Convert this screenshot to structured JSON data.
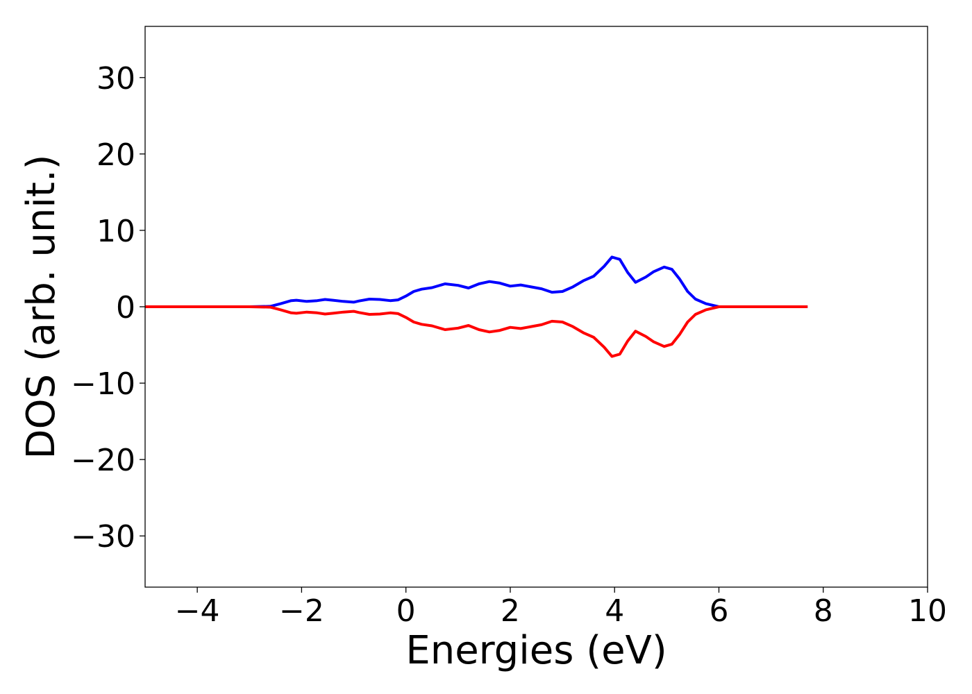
{
  "chart_data": {
    "type": "line",
    "title": "",
    "xlabel": "Energies (eV)",
    "ylabel": "DOS (arb. unit.)",
    "xlim": [
      -5,
      10
    ],
    "ylim": [
      -36.7,
      36.7
    ],
    "xticks": [
      -4,
      -2,
      0,
      2,
      4,
      6,
      8,
      10
    ],
    "xtick_labels": [
      "−4",
      "−2",
      "0",
      "2",
      "4",
      "6",
      "8",
      "10"
    ],
    "yticks": [
      30,
      20,
      10,
      0,
      -10,
      -20,
      -30
    ],
    "ytick_labels": [
      "30",
      "20",
      "10",
      "0",
      "−10",
      "−20",
      "−30"
    ],
    "grid": false,
    "legend": "none",
    "series": [
      {
        "color": "#0000ff",
        "x": [
          -5.0,
          -3.0,
          -2.6,
          -2.4,
          -2.2,
          -2.1,
          -1.9,
          -1.7,
          -1.55,
          -1.4,
          -1.2,
          -1.0,
          -0.9,
          -0.7,
          -0.5,
          -0.3,
          -0.15,
          0.0,
          0.15,
          0.3,
          0.5,
          0.75,
          1.0,
          1.2,
          1.4,
          1.6,
          1.8,
          2.0,
          2.2,
          2.4,
          2.6,
          2.8,
          3.0,
          3.2,
          3.4,
          3.6,
          3.8,
          3.95,
          4.1,
          4.25,
          4.4,
          4.6,
          4.75,
          4.95,
          5.1,
          5.25,
          5.4,
          5.55,
          5.75,
          6.0,
          7.0,
          7.7
        ],
        "y": [
          0,
          0,
          0.05,
          0.4,
          0.8,
          0.85,
          0.7,
          0.8,
          0.95,
          0.85,
          0.7,
          0.6,
          0.75,
          1.0,
          0.95,
          0.8,
          0.9,
          1.4,
          2.0,
          2.3,
          2.5,
          3.0,
          2.8,
          2.45,
          3.0,
          3.3,
          3.1,
          2.7,
          2.85,
          2.6,
          2.35,
          1.9,
          2.0,
          2.6,
          3.4,
          4.0,
          5.3,
          6.5,
          6.2,
          4.5,
          3.2,
          3.9,
          4.6,
          5.2,
          4.9,
          3.6,
          2.0,
          1.0,
          0.4,
          0,
          0,
          0
        ]
      },
      {
        "color": "#ff0000",
        "x": [
          -5.0,
          -3.0,
          -2.6,
          -2.4,
          -2.2,
          -2.1,
          -1.9,
          -1.7,
          -1.55,
          -1.4,
          -1.2,
          -1.0,
          -0.9,
          -0.7,
          -0.5,
          -0.3,
          -0.15,
          0.0,
          0.15,
          0.3,
          0.5,
          0.75,
          1.0,
          1.2,
          1.4,
          1.6,
          1.8,
          2.0,
          2.2,
          2.4,
          2.6,
          2.8,
          3.0,
          3.2,
          3.4,
          3.6,
          3.8,
          3.95,
          4.1,
          4.25,
          4.4,
          4.6,
          4.75,
          4.95,
          5.1,
          5.25,
          5.4,
          5.55,
          5.75,
          6.0,
          7.0,
          7.7
        ],
        "y": [
          0,
          0,
          -0.05,
          -0.4,
          -0.8,
          -0.85,
          -0.7,
          -0.8,
          -0.95,
          -0.85,
          -0.7,
          -0.6,
          -0.75,
          -1.0,
          -0.95,
          -0.8,
          -0.9,
          -1.4,
          -2.0,
          -2.3,
          -2.5,
          -3.0,
          -2.8,
          -2.45,
          -3.0,
          -3.3,
          -3.1,
          -2.7,
          -2.85,
          -2.6,
          -2.35,
          -1.9,
          -2.0,
          -2.6,
          -3.4,
          -4.0,
          -5.3,
          -6.5,
          -6.2,
          -4.5,
          -3.2,
          -3.9,
          -4.6,
          -5.2,
          -4.9,
          -3.6,
          -2.0,
          -1.0,
          -0.4,
          0,
          0,
          0
        ]
      }
    ]
  }
}
